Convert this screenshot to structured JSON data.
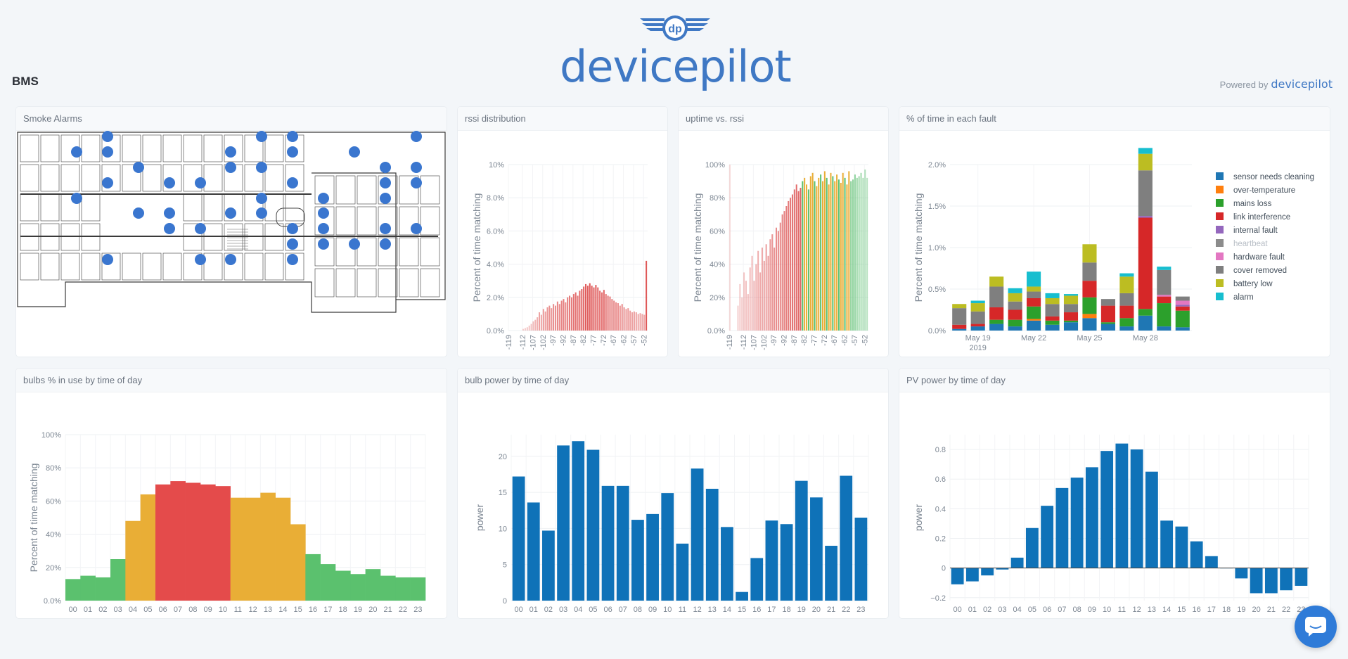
{
  "brand": {
    "name": "devicepilot",
    "badge": "dp"
  },
  "page": {
    "title": "BMS"
  },
  "powered": {
    "prefix": "Powered by",
    "brand": "devicepilot"
  },
  "colors": {
    "accent": "#3f78c4",
    "bar_blue": "#0f72b8",
    "red": "#e44b4b",
    "orange": "#e9ae36",
    "green": "#5bc16e"
  },
  "cards": {
    "smoke": {
      "title": "Smoke Alarms"
    },
    "rssi": {
      "title": "rssi distribution"
    },
    "uptime": {
      "title": "uptime vs. rssi"
    },
    "fault": {
      "title": "% of time in each fault"
    },
    "bulbs": {
      "title": "bulbs % in use by time of day"
    },
    "bulbpower": {
      "title": "bulb power by time of day"
    },
    "pv": {
      "title": "PV power by time of day"
    }
  },
  "chart_data": [
    {
      "id": "rssi",
      "type": "bar",
      "title": "rssi distribution",
      "ylabel": "Percent of time matching",
      "ylim": [
        0,
        10
      ],
      "yticks": [
        "0.0%",
        "2.0%",
        "4.0%",
        "6.0%",
        "8.0%",
        "10%"
      ],
      "xticks": [
        "-119",
        "-112",
        "-107",
        "-102",
        "-97",
        "-92",
        "-87",
        "-82",
        "-77",
        "-72",
        "-67",
        "-62",
        "-57",
        "-52"
      ],
      "x_range": [
        -119,
        -50
      ],
      "values": [
        0,
        0,
        0,
        0,
        0,
        0,
        0,
        0.1,
        0.15,
        0.2,
        0.3,
        0.4,
        0.55,
        0.65,
        0.8,
        1.1,
        0.95,
        1.3,
        1.15,
        1.4,
        1.5,
        1.35,
        1.6,
        1.5,
        1.75,
        1.6,
        1.8,
        1.9,
        1.7,
        2.0,
        2.1,
        2.0,
        2.2,
        2.3,
        2.1,
        2.4,
        2.5,
        2.65,
        2.8,
        2.7,
        2.85,
        2.7,
        2.6,
        2.75,
        2.6,
        2.4,
        2.3,
        2.45,
        2.2,
        2.1,
        2.05,
        1.9,
        1.8,
        1.7,
        1.65,
        1.5,
        1.6,
        1.4,
        1.3,
        1.35,
        1.2,
        1.1,
        1.15,
        1.1,
        1.0,
        1.05,
        1.0,
        0.95,
        4.2
      ]
    },
    {
      "id": "uptime",
      "type": "bar",
      "title": "uptime vs. rssi",
      "ylabel": "Percent of time matching",
      "ylim": [
        0,
        100
      ],
      "yticks": [
        "0.0%",
        "20%",
        "40%",
        "60%",
        "80%",
        "100%"
      ],
      "xticks": [
        "-119",
        "-112",
        "-107",
        "-102",
        "-97",
        "-92",
        "-87",
        "-82",
        "-77",
        "-72",
        "-67",
        "-62",
        "-57",
        "-52"
      ],
      "x_range": [
        -119,
        -50
      ],
      "values": [
        100,
        0,
        0,
        0,
        15,
        28,
        20,
        35,
        30,
        22,
        38,
        45,
        30,
        40,
        48,
        35,
        50,
        42,
        52,
        45,
        55,
        58,
        50,
        62,
        60,
        65,
        70,
        72,
        75,
        78,
        80,
        82,
        85,
        88,
        84,
        86,
        90,
        92,
        88,
        85,
        93,
        95,
        90,
        87,
        92,
        94,
        90,
        96,
        92,
        88,
        95,
        93,
        90,
        94,
        91,
        89,
        95,
        92,
        88,
        96,
        90,
        91,
        94,
        92,
        93,
        95,
        92,
        97,
        92
      ],
      "threshold_x": [
        -83,
        -60
      ]
    },
    {
      "id": "fault",
      "type": "bar",
      "stacked": true,
      "title": "% of time in each fault",
      "ylabel": "Percent of time matching",
      "ylim": [
        0,
        2
      ],
      "yticks": [
        "0.0%",
        "0.5%",
        "1.0%",
        "1.5%",
        "2.0%"
      ],
      "xticks": [
        "May 19",
        "May 22",
        "May 25",
        "May 28"
      ],
      "xtick_sub": "2019",
      "legend_position": "right",
      "legend": [
        {
          "name": "sensor needs cleaning",
          "color": "#1f77b4"
        },
        {
          "name": "over-temperature",
          "color": "#ff7f0e"
        },
        {
          "name": "mains loss",
          "color": "#2ca02c"
        },
        {
          "name": "link interference",
          "color": "#d62728"
        },
        {
          "name": "internal fault",
          "color": "#9467bd"
        },
        {
          "name": "heartbeat",
          "color": "#8c8c8c",
          "muted": true
        },
        {
          "name": "hardware fault",
          "color": "#e377c2"
        },
        {
          "name": "cover removed",
          "color": "#7f7f7f"
        },
        {
          "name": "battery low",
          "color": "#bcbd22"
        },
        {
          "name": "alarm",
          "color": "#17becf"
        }
      ],
      "stacks": [
        [
          0.02,
          0,
          0,
          0.05,
          0,
          0,
          0,
          0.2,
          0.05,
          0
        ],
        [
          0.05,
          0,
          0,
          0.03,
          0,
          0,
          0,
          0.15,
          0.1,
          0.03
        ],
        [
          0.08,
          0,
          0.05,
          0.15,
          0,
          0,
          0,
          0.25,
          0.12,
          0
        ],
        [
          0.05,
          0,
          0.08,
          0.12,
          0,
          0,
          0,
          0.1,
          0.1,
          0.06
        ],
        [
          0.12,
          0.02,
          0.15,
          0.1,
          0,
          0,
          0,
          0.08,
          0.06,
          0.18
        ],
        [
          0.07,
          0,
          0.05,
          0.05,
          0,
          0,
          0,
          0.15,
          0.07,
          0.06
        ],
        [
          0.1,
          0,
          0.02,
          0.1,
          0,
          0,
          0,
          0.1,
          0.1,
          0.02
        ],
        [
          0.15,
          0.05,
          0.2,
          0.2,
          0,
          0,
          0,
          0.22,
          0.22,
          0
        ],
        [
          0.08,
          0,
          0.02,
          0.2,
          0,
          0,
          0,
          0.08,
          0,
          0
        ],
        [
          0.05,
          0,
          0.1,
          0.15,
          0,
          0,
          0,
          0.15,
          0.2,
          0.04
        ],
        [
          0.18,
          0,
          0.08,
          1.1,
          0.02,
          0,
          0,
          0.55,
          0.2,
          0.07
        ],
        [
          0.05,
          0,
          0.28,
          0.08,
          0,
          0,
          0.02,
          0.3,
          0,
          0.04
        ],
        [
          0.04,
          0,
          0.2,
          0.05,
          0.02,
          0,
          0.05,
          0.05,
          0,
          0
        ]
      ]
    },
    {
      "id": "bulbs",
      "type": "bar",
      "title": "bulbs % in use by time of day",
      "ylabel": "Percent of time matching",
      "ylim": [
        0,
        100
      ],
      "yticks": [
        "0.0%",
        "20%",
        "40%",
        "60%",
        "80%",
        "100%"
      ],
      "categories": [
        "00",
        "01",
        "02",
        "03",
        "04",
        "05",
        "06",
        "07",
        "08",
        "09",
        "10",
        "11",
        "12",
        "13",
        "14",
        "15",
        "16",
        "17",
        "18",
        "19",
        "20",
        "21",
        "22",
        "23"
      ],
      "values": [
        13,
        15,
        14,
        25,
        48,
        64,
        70,
        72,
        71,
        70,
        69,
        62,
        62,
        65,
        62,
        46,
        28,
        22,
        18,
        16,
        19,
        15,
        14,
        14
      ]
    },
    {
      "id": "bulbpower",
      "type": "bar",
      "title": "bulb power by time of day",
      "ylabel": "power",
      "ylim": [
        0,
        23
      ],
      "yticks": [
        "0",
        "5",
        "10",
        "15",
        "20"
      ],
      "ytick_values": [
        0,
        5,
        10,
        15,
        20
      ],
      "categories": [
        "00",
        "01",
        "02",
        "03",
        "04",
        "05",
        "06",
        "07",
        "08",
        "09",
        "10",
        "11",
        "12",
        "13",
        "14",
        "15",
        "16",
        "17",
        "18",
        "19",
        "20",
        "21",
        "22",
        "23"
      ],
      "values": [
        17.2,
        13.6,
        9.7,
        21.5,
        22.1,
        20.9,
        15.9,
        15.9,
        11.2,
        12.0,
        14.9,
        7.9,
        18.3,
        15.5,
        10.2,
        1.2,
        5.9,
        11.1,
        10.6,
        16.6,
        14.3,
        7.6,
        17.3,
        11.5
      ]
    },
    {
      "id": "pv",
      "type": "bar",
      "title": "PV power by time of day",
      "ylabel": "power",
      "ylim": [
        -0.22,
        0.9
      ],
      "yticks": [
        "−0.2",
        "0",
        "0.2",
        "0.4",
        "0.6",
        "0.8"
      ],
      "ytick_values": [
        -0.2,
        0,
        0.2,
        0.4,
        0.6,
        0.8
      ],
      "categories": [
        "00",
        "01",
        "02",
        "03",
        "04",
        "05",
        "06",
        "07",
        "08",
        "09",
        "10",
        "11",
        "12",
        "13",
        "14",
        "15",
        "16",
        "17",
        "18",
        "19",
        "20",
        "21",
        "22",
        "23"
      ],
      "values": [
        -0.11,
        -0.09,
        -0.05,
        -0.01,
        0.07,
        0.27,
        0.42,
        0.54,
        0.61,
        0.68,
        0.79,
        0.84,
        0.8,
        0.65,
        0.32,
        0.28,
        0.18,
        0.08,
        0,
        -0.07,
        -0.17,
        -0.17,
        -0.15,
        -0.12
      ]
    }
  ]
}
